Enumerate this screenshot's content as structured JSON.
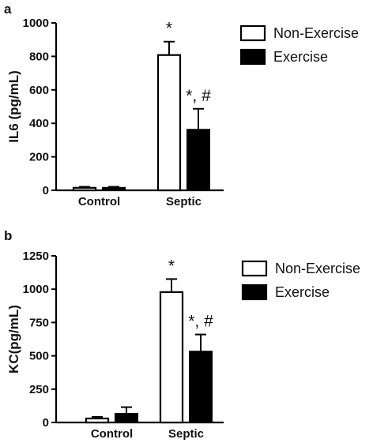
{
  "chart_data": [
    {
      "panel_label": "a",
      "type": "bar",
      "ylabel": "IL6 (pg/mL)",
      "xlabel": "",
      "categories": [
        "Control",
        "Septic"
      ],
      "ylim": [
        0,
        1000
      ],
      "yticks": [
        "0",
        "200",
        "400",
        "600",
        "800",
        "1000"
      ],
      "series": [
        {
          "name": "Non-Exercise",
          "values": [
            15,
            808
          ],
          "errors": [
            6,
            80
          ],
          "fill": "#ffffff"
        },
        {
          "name": "Exercise",
          "values": [
            15,
            362
          ],
          "errors": [
            6,
            125
          ],
          "fill": "#000000"
        }
      ],
      "annotations": [
        [
          "",
          "*"
        ],
        [
          "",
          "*, #"
        ]
      ],
      "legend_position": "top-right",
      "grid": false
    },
    {
      "panel_label": "b",
      "type": "bar",
      "ylabel": "KC(pg/mL)",
      "xlabel": "",
      "categories": [
        "Control",
        "Septic"
      ],
      "ylim": [
        0,
        1250
      ],
      "yticks": [
        "0",
        "250",
        "500",
        "750",
        "1000",
        "1250"
      ],
      "series": [
        {
          "name": "Non-Exercise",
          "values": [
            30,
            978
          ],
          "errors": [
            12,
            98
          ],
          "fill": "#ffffff"
        },
        {
          "name": "Exercise",
          "values": [
            65,
            532
          ],
          "errors": [
            50,
            128
          ],
          "fill": "#000000"
        }
      ],
      "annotations": [
        [
          "",
          "*"
        ],
        [
          "",
          "*, #"
        ]
      ],
      "legend_position": "top-right",
      "grid": false
    }
  ]
}
